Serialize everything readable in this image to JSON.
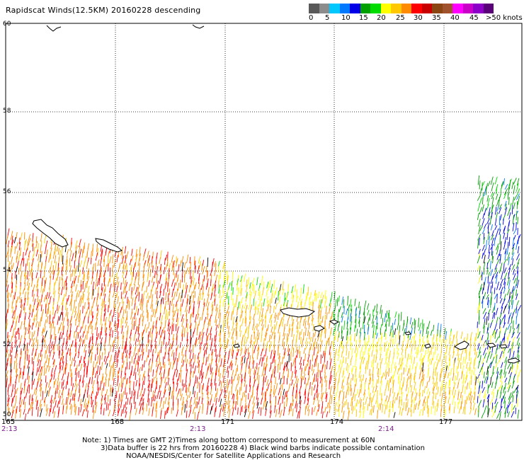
{
  "title": "Rapidscat Winds(12.5KM) 20160228 descending",
  "colorbar": {
    "segments": [
      "#595959",
      "#8c8c8c",
      "#00c8ff",
      "#0078ff",
      "#0000e6",
      "#00a000",
      "#00dc00",
      "#ffff00",
      "#ffc800",
      "#ff8c00",
      "#ff0000",
      "#c80000",
      "#8b4513",
      "#a0522d",
      "#ff00ff",
      "#c800c8",
      "#8c00c8",
      "#5a0078"
    ],
    "labels": [
      "0",
      "5",
      "10",
      "15",
      "20",
      "25",
      "30",
      "35",
      "40",
      "45",
      ">50 knots"
    ]
  },
  "map": {
    "lat_labels": [
      "60",
      "58",
      "56",
      "54",
      "52",
      "50"
    ],
    "lon_labels": [
      "165",
      "168",
      "171",
      "174",
      "177"
    ],
    "time_labels": [
      "2:13",
      "2:13",
      "2:14"
    ]
  },
  "notes": [
    "Note: 1) Times are GMT 2)Times along bottom correspond to measurement at 60N",
    "3)Data buffer is 22 hrs from 20160228 4) Black wind barbs indicate possible contamination",
    "NOAA/NESDIS/Center for Satellite Applications and Research"
  ]
}
